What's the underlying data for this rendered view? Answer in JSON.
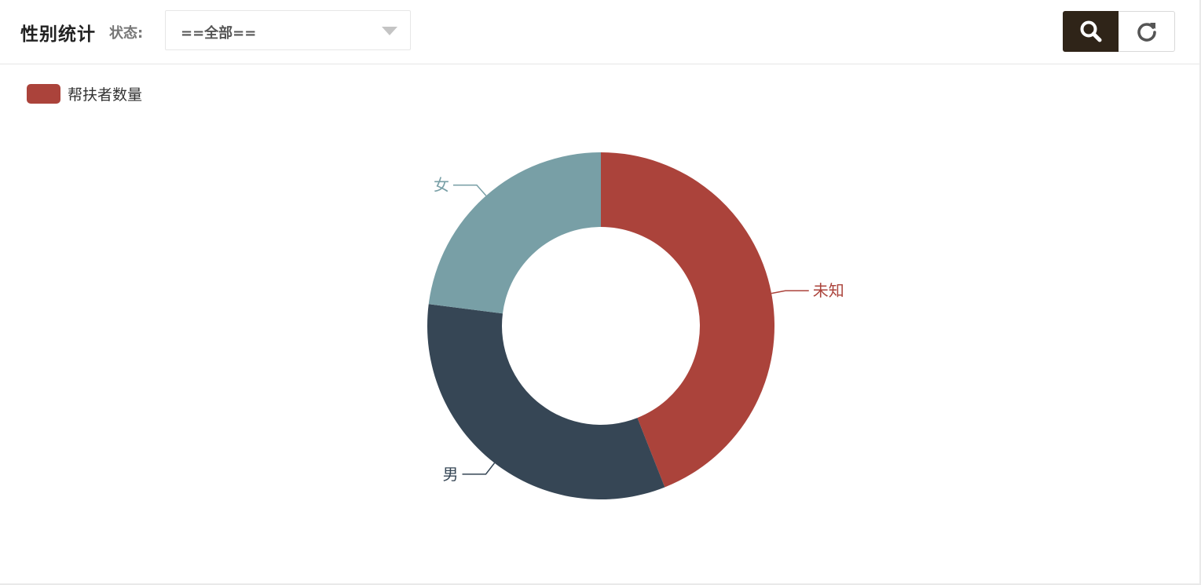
{
  "toolbar": {
    "title": "性别统计",
    "status_label": "状态:",
    "status_select": {
      "value": "==全部=="
    },
    "search_icon": "search-icon",
    "refresh_icon": "refresh-icon"
  },
  "colors": {
    "search_button_bg": "#2f2418",
    "slice_unknown": "#ab433b",
    "slice_male": "#364655",
    "slice_female": "#789fa6"
  },
  "chart_data": {
    "type": "pie",
    "variant": "donut",
    "legend": {
      "position": "top-left",
      "entries": [
        "帮扶者数量"
      ]
    },
    "series": [
      {
        "name": "帮扶者数量",
        "slices": [
          {
            "label": "未知",
            "value": 44,
            "color": "#ab433b"
          },
          {
            "label": "男",
            "value": 33,
            "color": "#364655"
          },
          {
            "label": "女",
            "value": 23,
            "color": "#789fa6"
          }
        ]
      }
    ]
  }
}
